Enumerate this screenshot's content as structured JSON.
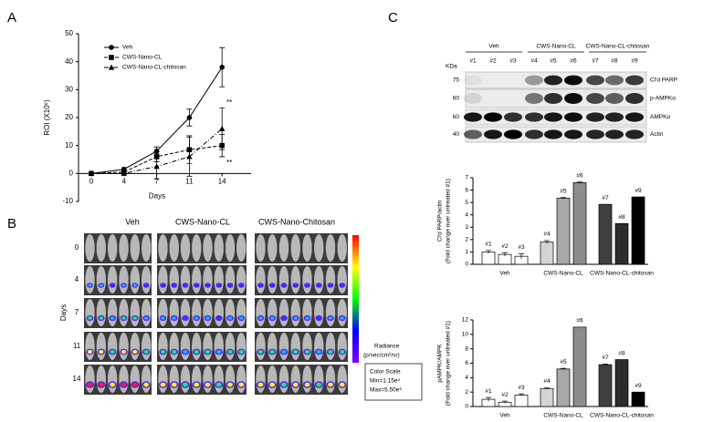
{
  "panel_labels": [
    "A",
    "B",
    "C"
  ],
  "chart_data": [
    {
      "type": "line",
      "y_label": "ROI (X10⁶)",
      "x_label": "Days",
      "categories": [
        "0",
        "4",
        "7",
        "11",
        "14"
      ],
      "series": [
        {
          "name": "Veh",
          "color": "#000000",
          "marker": "circle",
          "dash": "solid",
          "values": [
            0,
            1.5,
            8,
            20,
            38
          ],
          "errors": [
            0,
            0.6,
            1.5,
            3,
            7
          ]
        },
        {
          "name": "CWS-Nano-CL",
          "color": "#000000",
          "marker": "square",
          "dash": "dashed",
          "values": [
            0,
            0.5,
            6,
            8.5,
            10
          ],
          "errors": [
            0,
            0.4,
            1.8,
            5,
            4
          ]
        },
        {
          "name": "CWS-Nano-CL-chitosan",
          "color": "#000000",
          "marker": "triangle",
          "dash": "dashdot",
          "values": [
            0,
            0,
            2.5,
            6,
            16
          ],
          "errors": [
            0,
            0.2,
            4.5,
            7,
            7.5
          ]
        }
      ],
      "ylim": [
        -10,
        50
      ],
      "yticks": [
        -10,
        0,
        10,
        20,
        30,
        40,
        50
      ],
      "legend": "upper left",
      "annotations": [
        "**",
        "**"
      ]
    },
    {
      "type": "bar",
      "y_label": [
        "Cl'd PARP/actin",
        "(Fold change over untreated #1)"
      ],
      "categories": [
        "#1",
        "#2",
        "#3",
        "#4",
        "#5",
        "#6",
        "#7",
        "#8",
        "#9"
      ],
      "groups": [
        "Veh",
        "CWS-Nano-CL",
        "CWS-Nano-CL-chitosan"
      ],
      "values": [
        1.0,
        0.8,
        0.65,
        1.8,
        5.35,
        6.6,
        4.85,
        3.3,
        5.45
      ],
      "errors": [
        0.12,
        0.15,
        0.2,
        0.12,
        0.05,
        0.05,
        0,
        0,
        0
      ],
      "colors": [
        "#ffffff",
        "#ffffff",
        "#ffffff",
        "#d4d4d4",
        "#a8a8a8",
        "#8c8c8c",
        "#404040",
        "#2c2c2c",
        "#000000"
      ],
      "ylim": [
        0,
        7
      ],
      "yticks": [
        0,
        1,
        2,
        3,
        4,
        5,
        6,
        7
      ]
    },
    {
      "type": "bar",
      "y_label": [
        "pAMPK/AMPK",
        "(Fold change over untreated #1)"
      ],
      "categories": [
        "#1",
        "#2",
        "#3",
        "#4",
        "#5",
        "#6",
        "#7",
        "#8",
        "#9"
      ],
      "groups": [
        "Veh",
        "CWS-Nano-CL",
        "CWS-Nano-CL-chitosan"
      ],
      "values": [
        1.0,
        0.6,
        1.6,
        2.5,
        5.2,
        11,
        5.8,
        6.5,
        2.0
      ],
      "errors": [
        0.25,
        0.15,
        0.15,
        0.1,
        0.1,
        0,
        0.1,
        0,
        0
      ],
      "colors": [
        "#ffffff",
        "#ffffff",
        "#ffffff",
        "#d4d4d4",
        "#a8a8a8",
        "#8c8c8c",
        "#404040",
        "#2c2c2c",
        "#000000"
      ],
      "ylim": [
        0,
        12
      ],
      "yticks": [
        0,
        2,
        4,
        6,
        8,
        10,
        12
      ]
    }
  ],
  "imaging": {
    "columns": [
      "Veh",
      "CWS-Nano-CL",
      "CWS-Nano-Chitosan"
    ],
    "rows": [
      "0",
      "4",
      "7",
      "11",
      "14"
    ],
    "row_axis": "Days",
    "radiance_label": "Radiance",
    "radiance_unit": "(p/sec/cm²/sr)",
    "scale": {
      "title": "Color Scale",
      "min": "Min=1.15e⁵",
      "max": "Max=5.50e⁶"
    }
  },
  "blot": {
    "groups": [
      "Veh",
      "CWS-Nano-CL",
      "CWS-Nano-CL-chitosan"
    ],
    "lanes": [
      "#1",
      "#2",
      "#3",
      "#4",
      "#5",
      "#6",
      "#7",
      "#8",
      "#9"
    ],
    "kda_label": "KDa",
    "rows": [
      {
        "kda": "75",
        "label": "Cl'd PARP"
      },
      {
        "kda": "60",
        "label": "p-AMPKα"
      },
      {
        "kda": "60",
        "label": "AMPKα"
      },
      {
        "kda": "40",
        "label": "Actin"
      }
    ]
  }
}
